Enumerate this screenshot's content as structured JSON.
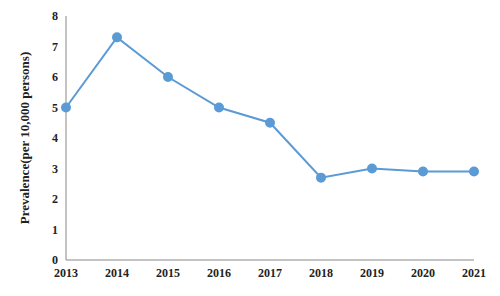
{
  "chart_data": {
    "type": "line",
    "y_label": "Prevalence(per 10,000 persons)",
    "categories": [
      "2013",
      "2014",
      "2015",
      "2016",
      "2017",
      "2018",
      "2019",
      "2020",
      "2021"
    ],
    "values": [
      5,
      7.3,
      6,
      5,
      4.5,
      2.7,
      3,
      2.9,
      2.9
    ],
    "color": "#5b9bd5",
    "marker": "circle",
    "ylim": [
      0,
      8
    ],
    "yticks": [
      0,
      1,
      2,
      3,
      4,
      5,
      6,
      7,
      8
    ],
    "grid": false
  }
}
